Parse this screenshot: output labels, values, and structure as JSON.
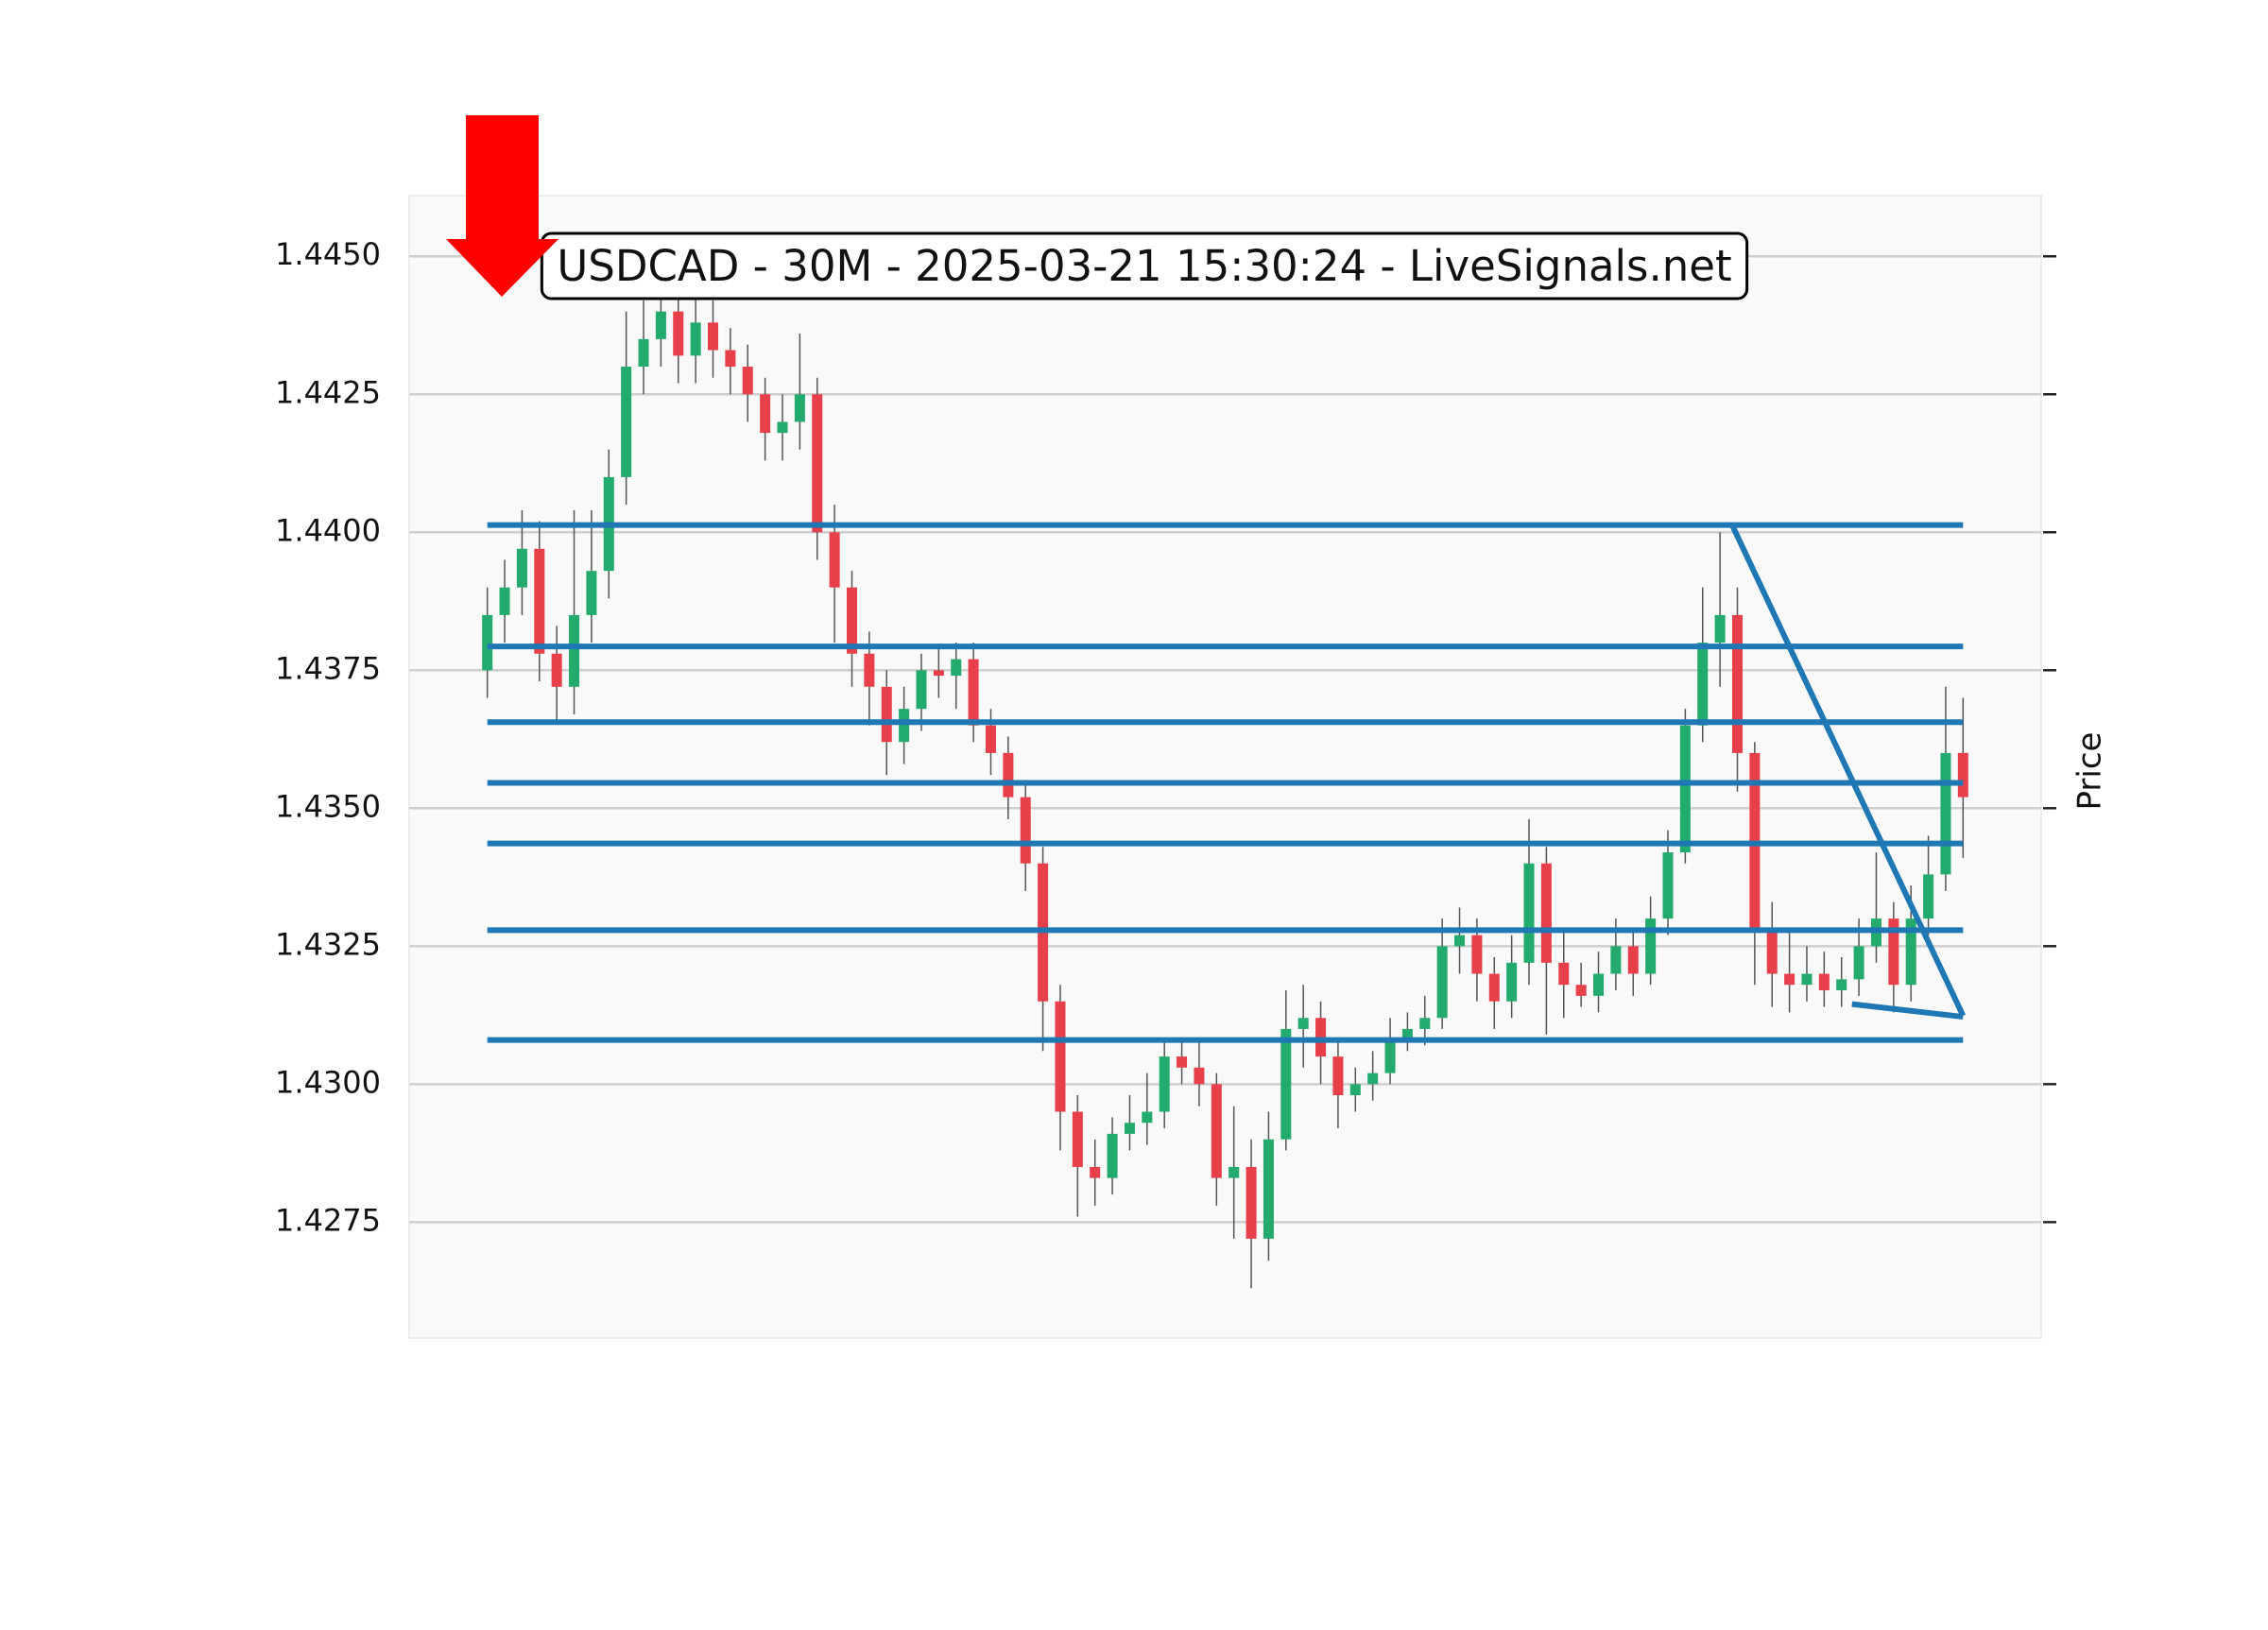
{
  "chart_data": {
    "type": "candlestick",
    "title": "USDCAD - 30M - 2025-03-21 15:30:24 - LiveSignals.net",
    "ylabel": "Price",
    "ylim": [
      1.4254,
      1.4461
    ],
    "xlim": [
      -4.5,
      89.5
    ],
    "yticks": [
      1.4275,
      {
        "value": 1.43,
        "label": "1.4300"
      },
      1.4325,
      {
        "value": 1.435,
        "label": "1.4350"
      },
      1.4375,
      {
        "value": 1.44,
        "label": "1.4400"
      },
      1.4425,
      {
        "value": 1.445,
        "label": "1.4450"
      }
    ],
    "grid": true,
    "up_color": "#22ab6d",
    "down_color": "#e8404a",
    "line_color": "#1f77b4",
    "open": [
      1.4375,
      1.4385,
      1.439,
      1.4397,
      1.4378,
      1.4372,
      1.4385,
      1.4393,
      1.441,
      1.443,
      1.4435,
      1.444,
      1.4432,
      1.4438,
      1.4433,
      1.443,
      1.4425,
      1.4418,
      1.442,
      1.4425,
      1.44,
      1.439,
      1.4378,
      1.4372,
      1.4362,
      1.4368,
      1.4375,
      1.4374,
      1.4377,
      1.4365,
      1.436,
      1.4352,
      1.434,
      1.4315,
      1.4295,
      1.4285,
      1.4283,
      1.4291,
      1.4293,
      1.4295,
      1.4305,
      1.4303,
      1.43,
      1.4283,
      1.4285,
      1.4272,
      1.429,
      1.431,
      1.4312,
      1.4305,
      1.4298,
      1.43,
      1.4302,
      1.4308,
      1.431,
      1.4312,
      1.4325,
      1.4327,
      1.432,
      1.4315,
      1.4322,
      1.434,
      1.4322,
      1.4318,
      1.4316,
      1.432,
      1.4325,
      1.432,
      1.433,
      1.4342,
      1.4365,
      1.438,
      1.4385,
      1.436,
      1.4328,
      1.432,
      1.4318,
      1.432,
      1.4317,
      1.4319,
      1.4325,
      1.433,
      1.4318,
      1.433,
      1.4338,
      1.436
    ],
    "high": [
      1.439,
      1.4395,
      1.4404,
      1.4402,
      1.4383,
      1.4404,
      1.4404,
      1.4415,
      1.444,
      1.4442,
      1.4446,
      1.4445,
      1.4443,
      1.4442,
      1.4437,
      1.4434,
      1.4428,
      1.4425,
      1.4436,
      1.4428,
      1.4405,
      1.4393,
      1.4382,
      1.4375,
      1.4372,
      1.4378,
      1.4379,
      1.438,
      1.438,
      1.4368,
      1.4363,
      1.4355,
      1.4343,
      1.4318,
      1.4298,
      1.429,
      1.4294,
      1.4298,
      1.4302,
      1.4308,
      1.4308,
      1.4308,
      1.4302,
      1.4296,
      1.429,
      1.4295,
      1.4317,
      1.4318,
      1.4315,
      1.4308,
      1.4303,
      1.4306,
      1.4312,
      1.4313,
      1.4316,
      1.433,
      1.4332,
      1.433,
      1.4323,
      1.4327,
      1.4348,
      1.4343,
      1.4328,
      1.4322,
      1.4324,
      1.433,
      1.4328,
      1.4334,
      1.4346,
      1.4368,
      1.439,
      1.44,
      1.439,
      1.4362,
      1.4333,
      1.4328,
      1.4325,
      1.4324,
      1.4323,
      1.433,
      1.4342,
      1.4333,
      1.4336,
      1.4345,
      1.4372,
      1.437
    ],
    "low": [
      1.437,
      1.438,
      1.4385,
      1.4373,
      1.4366,
      1.4367,
      1.438,
      1.4388,
      1.4405,
      1.4425,
      1.443,
      1.4427,
      1.4427,
      1.4428,
      1.4425,
      1.442,
      1.4413,
      1.4413,
      1.4415,
      1.4395,
      1.438,
      1.4372,
      1.4365,
      1.4356,
      1.4358,
      1.4364,
      1.437,
      1.4368,
      1.4362,
      1.4356,
      1.4348,
      1.4335,
      1.4306,
      1.4288,
      1.4276,
      1.4278,
      1.428,
      1.4288,
      1.4289,
      1.4292,
      1.43,
      1.4296,
      1.4278,
      1.4272,
      1.4263,
      1.4268,
      1.4288,
      1.4303,
      1.43,
      1.4292,
      1.4295,
      1.4297,
      1.43,
      1.4306,
      1.4307,
      1.431,
      1.432,
      1.4315,
      1.431,
      1.4312,
      1.4318,
      1.4309,
      1.4312,
      1.4314,
      1.4313,
      1.4317,
      1.4316,
      1.4318,
      1.4327,
      1.434,
      1.4362,
      1.4372,
      1.4353,
      1.4318,
      1.4314,
      1.4313,
      1.4315,
      1.4314,
      1.4314,
      1.4316,
      1.4322,
      1.4313,
      1.4315,
      1.4327,
      1.4335,
      1.4341
    ],
    "close": [
      1.4385,
      1.439,
      1.4397,
      1.4378,
      1.4372,
      1.4385,
      1.4393,
      1.441,
      1.443,
      1.4435,
      1.444,
      1.4432,
      1.4438,
      1.4433,
      1.443,
      1.4425,
      1.4418,
      1.442,
      1.4425,
      1.44,
      1.439,
      1.4378,
      1.4372,
      1.4362,
      1.4368,
      1.4375,
      1.4374,
      1.4377,
      1.4365,
      1.436,
      1.4352,
      1.434,
      1.4315,
      1.4295,
      1.4285,
      1.4283,
      1.4291,
      1.4293,
      1.4295,
      1.4305,
      1.4303,
      1.43,
      1.4283,
      1.4285,
      1.4272,
      1.429,
      1.431,
      1.4312,
      1.4305,
      1.4298,
      1.43,
      1.4302,
      1.4308,
      1.431,
      1.4312,
      1.4325,
      1.4327,
      1.432,
      1.4315,
      1.4322,
      1.434,
      1.4322,
      1.4318,
      1.4316,
      1.432,
      1.4325,
      1.432,
      1.433,
      1.4342,
      1.4365,
      1.438,
      1.4385,
      1.436,
      1.4328,
      1.432,
      1.4318,
      1.432,
      1.4317,
      1.4319,
      1.4325,
      1.433,
      1.4318,
      1.433,
      1.4338,
      1.436,
      1.4352
    ],
    "lines": [
      {
        "x": [
          0,
          85
        ],
        "y": [
          1.44013,
          1.44013
        ]
      },
      {
        "x": [
          0,
          85
        ],
        "y": [
          1.43793,
          1.43793
        ]
      },
      {
        "x": [
          0,
          85
        ],
        "y": [
          1.43656,
          1.43656
        ]
      },
      {
        "x": [
          0,
          85
        ],
        "y": [
          1.43546,
          1.43546
        ]
      },
      {
        "x": [
          0,
          85
        ],
        "y": [
          1.43436,
          1.43436
        ]
      },
      {
        "x": [
          0,
          85
        ],
        "y": [
          1.43279,
          1.43279
        ]
      },
      {
        "x": [
          0,
          85
        ],
        "y": [
          1.4308,
          1.4308
        ]
      },
      {
        "x": [
          71.7,
          85
        ],
        "y": [
          1.44013,
          1.43124
        ]
      },
      {
        "x": [
          78.6,
          85
        ],
        "y": [
          1.43145,
          1.43122
        ]
      }
    ]
  }
}
